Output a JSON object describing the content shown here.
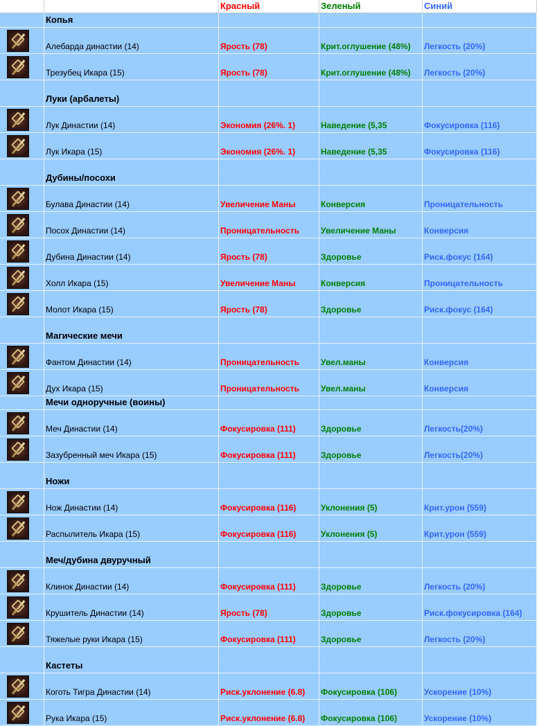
{
  "header": [
    "Красный",
    "Зеленый",
    "Синий"
  ],
  "groups": [
    {
      "title": "Копья",
      "items": [
        [
          "Алебарда династии (14)",
          "Ярость (78)",
          "Крит.оглушение (48%)",
          "Легкость (20%)"
        ],
        [
          "Трезубец Икара (15)",
          "Ярость (78)",
          "Крит.оглушение (48%)",
          "Легкость (20%)"
        ]
      ]
    },
    {
      "title": "Луки (арбалеты)",
      "items": [
        [
          "Лук Династии (14)",
          "Экономия (26%. 1)",
          "Наведение (5,35",
          "Фокусировка (116)"
        ],
        [
          "Лук Икара (15)",
          "Экономия (26%. 1)",
          "Наведение (5,35",
          "Фокусировка (116)"
        ]
      ]
    },
    {
      "title": "Дубины/посохи",
      "items": [
        [
          "Булава Династии (14)",
          "Увеличение Маны",
          "Конверсия",
          "Проницательность"
        ],
        [
          "Посох Династии (14)",
          "Проницательность",
          "Увеличение Маны",
          "Конверсия"
        ],
        [
          "Дубина Династии (14)",
          "Ярость (78)",
          "Здоровье",
          "Риск.фокус (164)"
        ],
        [
          "Холл Икара (15)",
          "Увеличение Маны",
          "Конверсия",
          "Проницательность"
        ],
        [
          "Молот Икара (15)",
          "Ярость (78)",
          "Здоровье",
          "Риск.фокус (164)"
        ]
      ]
    },
    {
      "title": "Магические мечи",
      "items": [
        [
          "Фантом Династии (14)",
          "Проницательность",
          "Увел.маны",
          "Конверсия"
        ],
        [
          "Дух Икара (15)",
          "Проницательность",
          "Увел.маны",
          "Конверсия"
        ]
      ]
    },
    {
      "title": "Мечи одноручные (воины)",
      "items": [
        [
          "Меч Династии (14)",
          "Фокусировка (111)",
          "Здоровье",
          "Легкость(20%)"
        ],
        [
          "Зазубренный меч Икара (15)",
          "Фокусировка (111)",
          "Здоровье",
          "Легкость(20%)"
        ]
      ]
    },
    {
      "title": "Ножи",
      "items": [
        [
          "Нож Династии (14)",
          "Фокусировка (116)",
          "Уклонения (5)",
          "Крит.урон (559)"
        ],
        [
          "Распылитель Икара (15)",
          "Фокусировка (116)",
          "Уклонения (5)",
          "Крит.урон (559)"
        ]
      ]
    },
    {
      "title": "Меч/дубина двуручный",
      "items": [
        [
          "Клинок Династии (14)",
          "Фокусировка (111)",
          "Здоровье",
          "Легкость (20%)"
        ],
        [
          "Крушитель Династии (14)",
          "Ярость (78)",
          "Здоровье",
          "Риск.фокусировка (164)"
        ],
        [
          "Тяжелые руки Икара (15)",
          "Фокусировка (111)",
          "Здоровье",
          "Легкость (20%)"
        ]
      ]
    },
    {
      "title": "Кастеты",
      "items": [
        [
          "Коготь Тигра Династии (14)",
          "Риск.уклонение (6.8)",
          "Фокусировка (106)",
          "Ускорение (10%)"
        ],
        [
          "Рука Икара (15)",
          "Риск.уклонение (6.8)",
          "Фокусировка (106)",
          "Ускорение (10%)"
        ]
      ]
    }
  ]
}
